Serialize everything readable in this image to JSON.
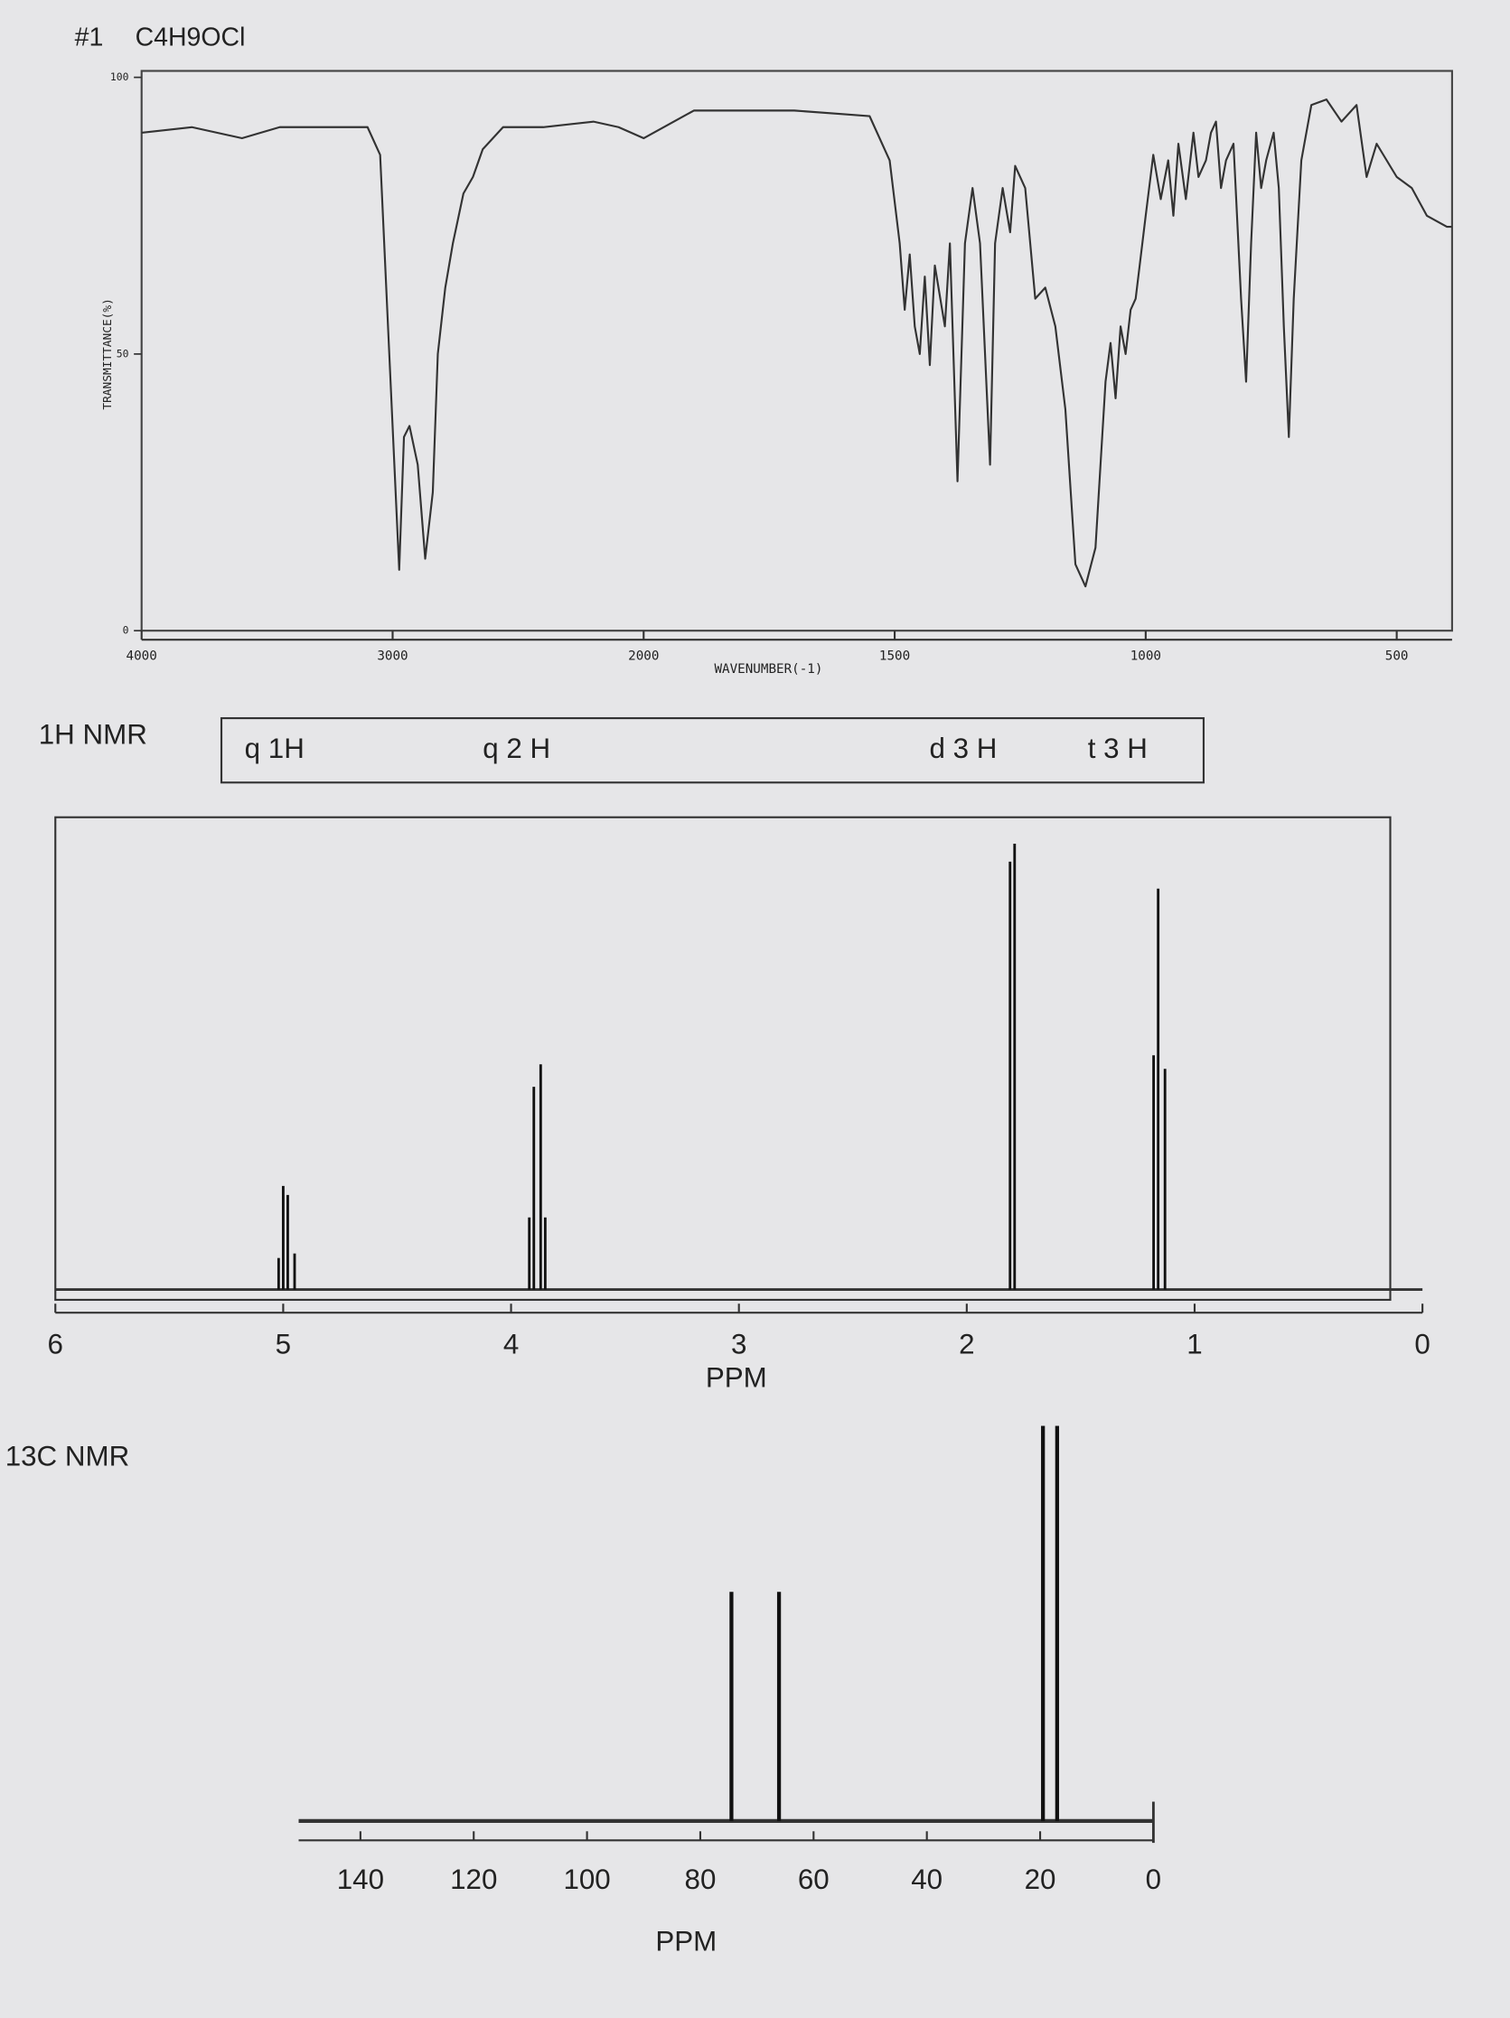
{
  "chart_data": [
    {
      "type": "line",
      "title": "#1",
      "subtitle": "C4H9OCl",
      "x_label": "WAVENUMBER(-1)",
      "y_label": "TRANSMITTANCE(%)",
      "x": [
        4000,
        3800,
        3600,
        3450,
        3100,
        3050,
        2974,
        2955,
        2933,
        2900,
        2870,
        2840,
        2820,
        2790,
        2760,
        2718,
        2680,
        2641,
        2560,
        2400,
        2200,
        2100,
        2000,
        1900,
        1700,
        1550,
        1510,
        1490,
        1480,
        1470,
        1460,
        1450,
        1440,
        1430,
        1420,
        1400,
        1390,
        1375,
        1360,
        1345,
        1330,
        1310,
        1300,
        1285,
        1270,
        1260,
        1240,
        1220,
        1200,
        1180,
        1160,
        1140,
        1120,
        1100,
        1080,
        1070,
        1060,
        1050,
        1040,
        1030,
        1020,
        1000,
        985,
        970,
        955,
        945,
        935,
        920,
        905,
        895,
        880,
        870,
        860,
        850,
        840,
        825,
        810,
        800,
        790,
        780,
        770,
        760,
        745,
        735,
        725,
        715,
        705,
        690,
        670,
        640,
        610,
        580,
        560,
        540,
        500,
        470,
        440,
        400,
        390
      ],
      "values": [
        90,
        91,
        89,
        91,
        91,
        86,
        11,
        35,
        37,
        30,
        13,
        25,
        50,
        62,
        70,
        79,
        82,
        87,
        91,
        91,
        92,
        91,
        89,
        94,
        94,
        93,
        85,
        70,
        58,
        68,
        55,
        50,
        64,
        48,
        66,
        55,
        70,
        27,
        70,
        80,
        70,
        30,
        70,
        80,
        72,
        84,
        80,
        60,
        62,
        55,
        40,
        12,
        8,
        15,
        45,
        52,
        42,
        55,
        50,
        58,
        60,
        75,
        86,
        78,
        85,
        75,
        88,
        78,
        90,
        82,
        85,
        90,
        92,
        80,
        85,
        88,
        60,
        45,
        70,
        90,
        80,
        85,
        90,
        80,
        55,
        35,
        60,
        85,
        95,
        96,
        92,
        95,
        82,
        88,
        82,
        80,
        75,
        73,
        73
      ],
      "color": "#333333",
      "xlim": [
        4000,
        390
      ],
      "xticks": [
        4000,
        3000,
        2000,
        1500,
        1000,
        500
      ],
      "ylim": [
        0,
        100
      ],
      "yticks": [
        0,
        50,
        100
      ]
    },
    {
      "type": "stem",
      "title": "1H NMR",
      "x_label": "PPM",
      "annotations": [
        "q 1H",
        "q 2 H",
        "d 3 H",
        "t 3 H"
      ],
      "x": [
        5.02,
        5.0,
        4.98,
        4.95,
        3.92,
        3.9,
        3.87,
        3.85,
        1.81,
        1.79,
        1.18,
        1.16,
        1.13
      ],
      "values": [
        7,
        23,
        21,
        8,
        16,
        45,
        50,
        16,
        95,
        99,
        52,
        89,
        49
      ],
      "color": "#111111",
      "xlim": [
        6,
        0
      ],
      "xticks": [
        6,
        5,
        4,
        3,
        2,
        1,
        0
      ],
      "ylim": [
        0,
        100
      ]
    },
    {
      "type": "stem",
      "title": "13C NMR",
      "x_label": "PPM",
      "x": [
        74.5,
        66.1,
        19.5,
        17.0
      ],
      "values": [
        58,
        58,
        100,
        100
      ],
      "color": "#111111",
      "xlim": [
        151,
        0
      ],
      "xticks": [
        140,
        120,
        100,
        80,
        60,
        40,
        20,
        0
      ],
      "ylim": [
        0,
        100
      ]
    }
  ]
}
